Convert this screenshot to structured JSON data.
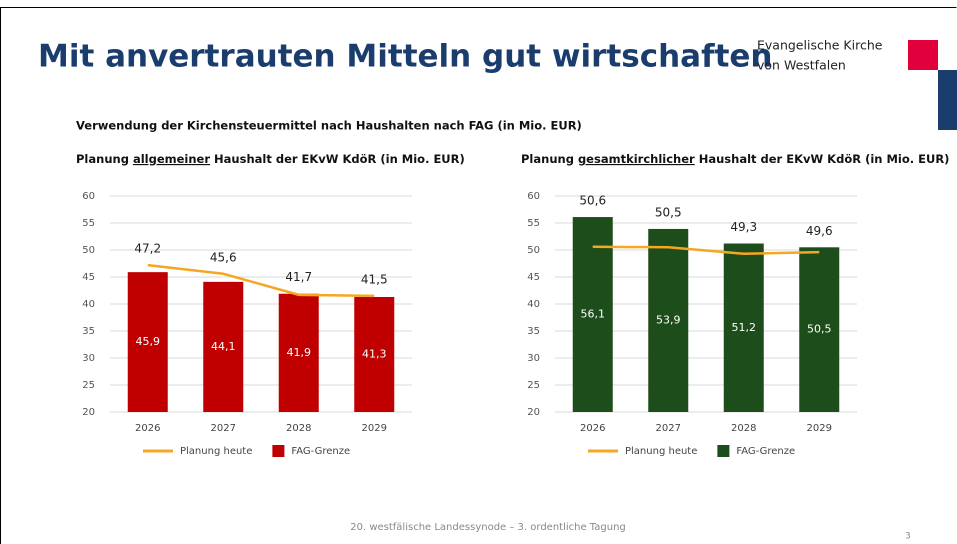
{
  "header": {
    "title": "Mit anvertrauten Mitteln gut wirtschaften",
    "organization": [
      "Evangelische Kirche",
      "von Westfalen"
    ]
  },
  "section_title": "Verwendung der Kirchensteuermittel nach Haushalten nach FAG (in Mio. EUR)",
  "chart_data": [
    {
      "type": "bar",
      "title": [
        "Planung",
        "allgemeiner",
        "Haushalt der EKvW KdöR (in Mio. EUR)"
      ],
      "categories": [
        "2026",
        "2027",
        "2028",
        "2029"
      ],
      "series": [
        {
          "name": "Planung heute",
          "type": "line",
          "color": "#f5a623",
          "values": [
            47.2,
            45.6,
            41.7,
            41.5
          ],
          "value_labels": [
            "47,2",
            "45,6",
            "41,7",
            "41,5"
          ]
        },
        {
          "name": "FAG-Grenze",
          "type": "bar",
          "color": "#c00000",
          "values": [
            45.9,
            44.1,
            41.9,
            41.3
          ],
          "value_labels": [
            "45,9",
            "44,1",
            "41,9",
            "41,3"
          ]
        }
      ],
      "ylim": [
        20,
        60
      ],
      "yticks": [
        20,
        25,
        30,
        35,
        40,
        45,
        50,
        55,
        60
      ],
      "grid": true
    },
    {
      "type": "bar",
      "title": [
        "Planung",
        "gesamtkirchlicher",
        "Haushalt der EKvW KdöR (in Mio. EUR)"
      ],
      "categories": [
        "2026",
        "2027",
        "2028",
        "2029"
      ],
      "series": [
        {
          "name": "Planung heute",
          "type": "line",
          "color": "#f5a623",
          "values": [
            50.6,
            50.5,
            49.3,
            49.6
          ],
          "value_labels": [
            "50,6",
            "50,5",
            "49,3",
            "49,6"
          ]
        },
        {
          "name": "FAG-Grenze",
          "type": "bar",
          "color": "#1e4d1c",
          "values": [
            56.1,
            53.9,
            51.2,
            50.5
          ],
          "value_labels": [
            "56,1",
            "53,9",
            "51,2",
            "50,5"
          ]
        }
      ],
      "ylim": [
        20,
        60
      ],
      "yticks": [
        20,
        25,
        30,
        35,
        40,
        45,
        50,
        55,
        60
      ],
      "grid": true
    }
  ],
  "footer": "20. westfälische Landessynode – 3. ordentliche Tagung",
  "page_number": 3
}
